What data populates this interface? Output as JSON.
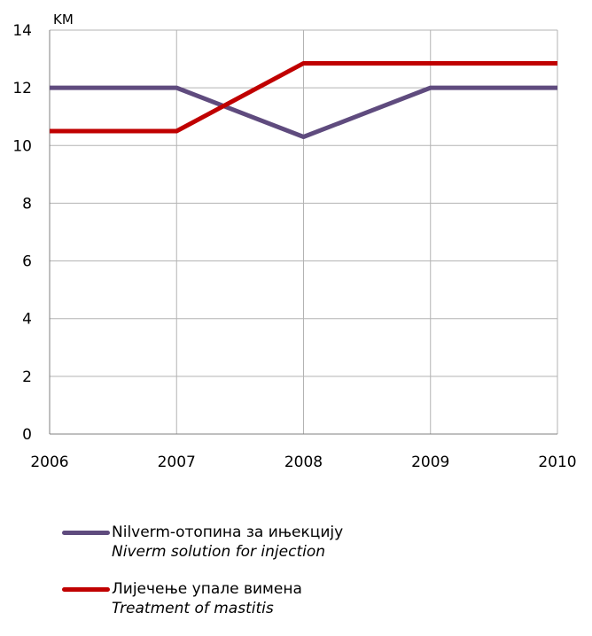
{
  "chart_data": {
    "type": "line",
    "unit": "KM",
    "x": [
      "2006",
      "2007",
      "2008",
      "2009",
      "2010"
    ],
    "yticks": [
      0,
      2,
      4,
      6,
      8,
      10,
      12,
      14
    ],
    "ylim": [
      0,
      14
    ],
    "grid": true,
    "legend_position": "bottom",
    "series": [
      {
        "name": "Nilverm-отопина за ињекцију",
        "name_en": "Niverm solution for injection",
        "color": "#5f4b7e",
        "values": [
          12.0,
          12.0,
          10.3,
          12.0,
          12.0
        ]
      },
      {
        "name": "Лијечење упале вимена",
        "name_en": "Treatment of mastitis",
        "color": "#c00000",
        "values": [
          10.5,
          10.5,
          12.85,
          12.85,
          12.85
        ]
      }
    ]
  }
}
